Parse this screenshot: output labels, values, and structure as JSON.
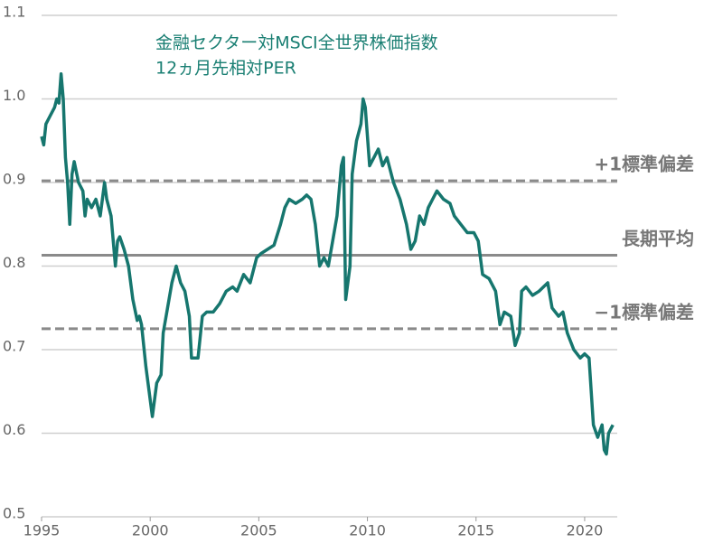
{
  "chart_data": {
    "type": "line",
    "title": "金融セクター対MSCI全世界株価指数",
    "subtitle": "12ヵ月先相対PER",
    "x": [
      1995.0,
      1995.1,
      1995.2,
      1995.4,
      1995.6,
      1995.7,
      1995.8,
      1995.9,
      1996.0,
      1996.1,
      1996.2,
      1996.3,
      1996.4,
      1996.5,
      1996.7,
      1996.9,
      1997.0,
      1997.1,
      1997.3,
      1997.5,
      1997.7,
      1997.9,
      1998.0,
      1998.2,
      1998.4,
      1998.5,
      1998.6,
      1998.8,
      1999.0,
      1999.2,
      1999.4,
      1999.5,
      1999.6,
      1999.8,
      2000.1,
      2000.3,
      2000.5,
      2000.6,
      2000.8,
      2001.0,
      2001.2,
      2001.4,
      2001.6,
      2001.8,
      2001.9,
      2002.2,
      2002.4,
      2002.6,
      2002.9,
      2003.2,
      2003.5,
      2003.8,
      2004.0,
      2004.3,
      2004.6,
      2004.9,
      2005.1,
      2005.4,
      2005.7,
      2006.0,
      2006.2,
      2006.4,
      2006.7,
      2007.0,
      2007.2,
      2007.4,
      2007.6,
      2007.8,
      2008.0,
      2008.2,
      2008.4,
      2008.6,
      2008.8,
      2008.9,
      2009.0,
      2009.2,
      2009.3,
      2009.5,
      2009.7,
      2009.8,
      2009.9,
      2010.1,
      2010.3,
      2010.5,
      2010.7,
      2010.9,
      2011.2,
      2011.5,
      2011.8,
      2012.0,
      2012.2,
      2012.4,
      2012.6,
      2012.8,
      2013.0,
      2013.2,
      2013.5,
      2013.8,
      2014.0,
      2014.3,
      2014.6,
      2014.9,
      2015.1,
      2015.3,
      2015.6,
      2015.9,
      2016.1,
      2016.3,
      2016.6,
      2016.8,
      2017.0,
      2017.1,
      2017.3,
      2017.6,
      2017.9,
      2018.1,
      2018.3,
      2018.5,
      2018.8,
      2019.0,
      2019.2,
      2019.5,
      2019.8,
      2020.0,
      2020.2,
      2020.3,
      2020.4,
      2020.6,
      2020.8,
      2020.9,
      2021.0,
      2021.1,
      2021.3
    ],
    "series": [
      {
        "color": "#16766e",
        "values": [
          0.955,
          0.945,
          0.97,
          0.98,
          0.99,
          1.0,
          0.995,
          1.03,
          1.0,
          0.93,
          0.9,
          0.85,
          0.91,
          0.925,
          0.9,
          0.89,
          0.86,
          0.88,
          0.87,
          0.88,
          0.86,
          0.9,
          0.88,
          0.86,
          0.8,
          0.83,
          0.835,
          0.82,
          0.8,
          0.76,
          0.735,
          0.74,
          0.73,
          0.68,
          0.62,
          0.66,
          0.67,
          0.72,
          0.75,
          0.78,
          0.8,
          0.78,
          0.77,
          0.74,
          0.69,
          0.69,
          0.74,
          0.745,
          0.745,
          0.755,
          0.77,
          0.775,
          0.77,
          0.79,
          0.78,
          0.81,
          0.815,
          0.82,
          0.825,
          0.85,
          0.87,
          0.88,
          0.875,
          0.88,
          0.885,
          0.88,
          0.85,
          0.8,
          0.81,
          0.8,
          0.83,
          0.86,
          0.92,
          0.93,
          0.76,
          0.8,
          0.91,
          0.95,
          0.97,
          1.0,
          0.99,
          0.92,
          0.93,
          0.94,
          0.92,
          0.93,
          0.9,
          0.88,
          0.85,
          0.82,
          0.83,
          0.86,
          0.85,
          0.87,
          0.88,
          0.89,
          0.88,
          0.875,
          0.86,
          0.85,
          0.84,
          0.84,
          0.83,
          0.79,
          0.785,
          0.77,
          0.73,
          0.745,
          0.74,
          0.705,
          0.72,
          0.77,
          0.775,
          0.765,
          0.77,
          0.775,
          0.78,
          0.75,
          0.74,
          0.745,
          0.72,
          0.7,
          0.69,
          0.695,
          0.69,
          0.65,
          0.61,
          0.595,
          0.61,
          0.58,
          0.575,
          0.6,
          0.61
        ]
      }
    ],
    "reference_lines": [
      {
        "value": 0.902,
        "label": "+1標準偏差",
        "style": "dashed"
      },
      {
        "value": 0.813,
        "label": "長期平均",
        "style": "solid"
      },
      {
        "value": 0.725,
        "label": "−1標準偏差",
        "style": "dashed"
      }
    ],
    "xlim": [
      1995,
      2021.5
    ],
    "xticks": [
      1995,
      2000,
      2005,
      2010,
      2015,
      2020
    ],
    "ylim": [
      0.5,
      1.1
    ],
    "yticks": [
      0.5,
      0.6,
      0.7,
      0.8,
      0.9,
      {
        "value": 1,
        "label": "1.0"
      },
      1.1
    ],
    "grid": true
  }
}
